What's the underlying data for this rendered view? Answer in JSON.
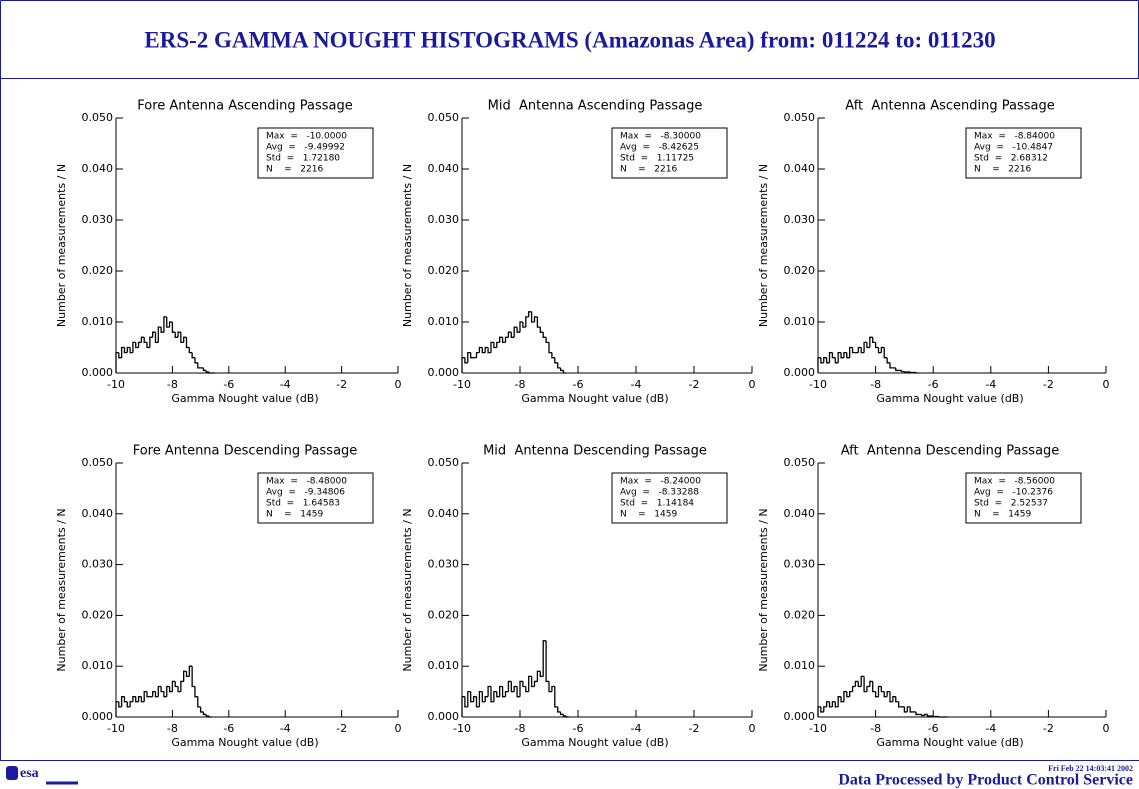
{
  "header": {
    "title": "ERS-2 GAMMA NOUGHT HISTOGRAMS (Amazonas Area) from: 011224 to: 011230"
  },
  "footer": {
    "logo": "esa",
    "timestamp": "Fri Feb 22 14:03:41 2002",
    "credit": "Data Processed by Product Control Service"
  },
  "chart_data": [
    {
      "type": "histogram",
      "title": "Fore Antenna Ascending Passage",
      "x_label": "Gamma Nought value (dB)",
      "y_label": "Number of measurements / N",
      "color": "#000000",
      "stats": [
        "Max  =   -10.0000",
        "Avg  =   -9.49992",
        "Std  =   1.72180",
        "N    =   2216"
      ],
      "bins": [
        -10,
        -9.9,
        -9.8,
        -9.7,
        -9.6,
        -9.5,
        -9.4,
        -9.3,
        -9.2,
        -9.1,
        -9,
        -8.9,
        -8.8,
        -8.7,
        -8.6,
        -8.5,
        -8.4,
        -8.3,
        -8.2,
        -8.1,
        -8,
        -7.9,
        -7.8,
        -7.7,
        -7.6,
        -7.5,
        -7.4,
        -7.3,
        -7.2,
        -7.1,
        -7,
        -6.9,
        -6.8,
        -6.7,
        -6.6,
        -6.5
      ],
      "values": [
        0.004,
        0.003,
        0.005,
        0.004,
        0.005,
        0.004,
        0.006,
        0.005,
        0.006,
        0.007,
        0.006,
        0.005,
        0.007,
        0.008,
        0.006,
        0.009,
        0.008,
        0.011,
        0.009,
        0.01,
        0.008,
        0.007,
        0.008,
        0.006,
        0.007,
        0.005,
        0.004,
        0.003,
        0.002,
        0.001,
        0.001,
        0.0005,
        0.0002,
        0,
        0
      ],
      "xlim": [
        -10,
        0
      ],
      "xticks": [
        -10,
        -8,
        -6,
        -4,
        -2,
        0
      ],
      "ylim": [
        0,
        0.05
      ],
      "yticks": [
        {
          "value": 0,
          "label": "0.000"
        },
        {
          "value": 0.01,
          "label": "0.010"
        },
        {
          "value": 0.02,
          "label": "0.020"
        },
        {
          "value": 0.03,
          "label": "0.030"
        },
        {
          "value": 0.04,
          "label": "0.040"
        },
        {
          "value": 0.05,
          "label": "0.050"
        }
      ]
    },
    {
      "type": "histogram",
      "title": "Mid  Antenna Ascending Passage",
      "x_label": "Gamma Nought value (dB)",
      "y_label": "Number of measurements / N",
      "color": "#000000",
      "stats": [
        "Max  =   -8.30000",
        "Avg  =   -8.42625",
        "Std  =   1.11725",
        "N    =   2216"
      ],
      "bins": [
        -10,
        -9.9,
        -9.8,
        -9.7,
        -9.6,
        -9.5,
        -9.4,
        -9.3,
        -9.2,
        -9.1,
        -9,
        -8.9,
        -8.8,
        -8.7,
        -8.6,
        -8.5,
        -8.4,
        -8.3,
        -8.2,
        -8.1,
        -8,
        -7.9,
        -7.8,
        -7.7,
        -7.6,
        -7.5,
        -7.4,
        -7.3,
        -7.2,
        -7.1,
        -7,
        -6.9,
        -6.8,
        -6.7,
        -6.6,
        -6.5,
        -6.4
      ],
      "values": [
        0.003,
        0.002,
        0.004,
        0.003,
        0.003,
        0.004,
        0.005,
        0.004,
        0.005,
        0.004,
        0.006,
        0.005,
        0.006,
        0.007,
        0.006,
        0.007,
        0.008,
        0.007,
        0.009,
        0.008,
        0.01,
        0.009,
        0.011,
        0.012,
        0.01,
        0.011,
        0.009,
        0.008,
        0.007,
        0.006,
        0.004,
        0.003,
        0.002,
        0.001,
        0.0005,
        0
      ],
      "xlim": [
        -10,
        0
      ],
      "xticks": [
        -10,
        -8,
        -6,
        -4,
        -2,
        0
      ],
      "ylim": [
        0,
        0.05
      ],
      "yticks": [
        {
          "value": 0,
          "label": "0.000"
        },
        {
          "value": 0.01,
          "label": "0.010"
        },
        {
          "value": 0.02,
          "label": "0.020"
        },
        {
          "value": 0.03,
          "label": "0.030"
        },
        {
          "value": 0.04,
          "label": "0.040"
        },
        {
          "value": 0.05,
          "label": "0.050"
        }
      ]
    },
    {
      "type": "histogram",
      "title": "Aft  Antenna Ascending Passage",
      "x_label": "Gamma Nought value (dB)",
      "y_label": "Number of measurements / N",
      "color": "#000000",
      "stats": [
        "Max  =   -8.84000",
        "Avg  =   -10.4847",
        "Std  =   2.68312",
        "N    =   2216"
      ],
      "bins": [
        -10,
        -9.9,
        -9.8,
        -9.7,
        -9.6,
        -9.5,
        -9.4,
        -9.3,
        -9.2,
        -9.1,
        -9,
        -8.9,
        -8.8,
        -8.7,
        -8.6,
        -8.5,
        -8.4,
        -8.3,
        -8.2,
        -8.1,
        -8,
        -7.9,
        -7.8,
        -7.7,
        -7.6,
        -7.5,
        -7.4,
        -7.3,
        -7.2,
        -7.1,
        -7,
        -6.9,
        -6.8,
        -6.7,
        -6.6,
        -6.5
      ],
      "values": [
        0.003,
        0.002,
        0.003,
        0.002,
        0.004,
        0.003,
        0.002,
        0.004,
        0.003,
        0.004,
        0.003,
        0.005,
        0.004,
        0.004,
        0.005,
        0.004,
        0.006,
        0.005,
        0.007,
        0.006,
        0.005,
        0.004,
        0.005,
        0.003,
        0.002,
        0.001,
        0.001,
        0.0005,
        0.0005,
        0.0003,
        0.0002,
        0.0002,
        0.0001,
        0.0001,
        0
      ],
      "xlim": [
        -10,
        0
      ],
      "xticks": [
        -10,
        -8,
        -6,
        -4,
        -2,
        0
      ],
      "ylim": [
        0,
        0.05
      ],
      "yticks": [
        {
          "value": 0,
          "label": "0.000"
        },
        {
          "value": 0.01,
          "label": "0.010"
        },
        {
          "value": 0.02,
          "label": "0.020"
        },
        {
          "value": 0.03,
          "label": "0.030"
        },
        {
          "value": 0.04,
          "label": "0.040"
        },
        {
          "value": 0.05,
          "label": "0.050"
        }
      ]
    },
    {
      "type": "histogram",
      "title": "Fore Antenna Descending Passage",
      "x_label": "Gamma Nought value (dB)",
      "y_label": "Number of measurements / N",
      "color": "#000000",
      "stats": [
        "Max  =   -8.48000",
        "Avg  =   -9.34806",
        "Std  =   1.64583",
        "N    =   1459"
      ],
      "bins": [
        -10,
        -9.9,
        -9.8,
        -9.7,
        -9.6,
        -9.5,
        -9.4,
        -9.3,
        -9.2,
        -9.1,
        -9,
        -8.9,
        -8.8,
        -8.7,
        -8.6,
        -8.5,
        -8.4,
        -8.3,
        -8.2,
        -8.1,
        -8,
        -7.9,
        -7.8,
        -7.7,
        -7.6,
        -7.5,
        -7.4,
        -7.3,
        -7.2,
        -7.1,
        -7,
        -6.9,
        -6.8,
        -6.7,
        -6.6
      ],
      "values": [
        0.003,
        0.002,
        0.004,
        0.003,
        0.002,
        0.003,
        0.004,
        0.003,
        0.004,
        0.003,
        0.005,
        0.004,
        0.004,
        0.005,
        0.004,
        0.006,
        0.005,
        0.004,
        0.006,
        0.005,
        0.007,
        0.006,
        0.005,
        0.007,
        0.009,
        0.008,
        0.01,
        0.006,
        0.004,
        0.002,
        0.001,
        0.0005,
        0.0002,
        0
      ],
      "xlim": [
        -10,
        0
      ],
      "xticks": [
        -10,
        -8,
        -6,
        -4,
        -2,
        0
      ],
      "ylim": [
        0,
        0.05
      ],
      "yticks": [
        {
          "value": 0,
          "label": "0.000"
        },
        {
          "value": 0.01,
          "label": "0.010"
        },
        {
          "value": 0.02,
          "label": "0.020"
        },
        {
          "value": 0.03,
          "label": "0.030"
        },
        {
          "value": 0.04,
          "label": "0.040"
        },
        {
          "value": 0.05,
          "label": "0.050"
        }
      ]
    },
    {
      "type": "histogram",
      "title": "Mid  Antenna Descending Passage",
      "x_label": "Gamma Nought value (dB)",
      "y_label": "Number of measurements / N",
      "color": "#000000",
      "stats": [
        "Max  =   -8.24000",
        "Avg  =   -8.33288",
        "Std  =   1.14184",
        "N    =   1459"
      ],
      "bins": [
        -10,
        -9.9,
        -9.8,
        -9.7,
        -9.6,
        -9.5,
        -9.4,
        -9.3,
        -9.2,
        -9.1,
        -9,
        -8.9,
        -8.8,
        -8.7,
        -8.6,
        -8.5,
        -8.4,
        -8.3,
        -8.2,
        -8.1,
        -8,
        -7.9,
        -7.8,
        -7.7,
        -7.6,
        -7.5,
        -7.4,
        -7.3,
        -7.2,
        -7.1,
        -7,
        -6.9,
        -6.8,
        -6.7,
        -6.6,
        -6.5,
        -6.4,
        -6.3
      ],
      "values": [
        0.004,
        0.002,
        0.005,
        0.003,
        0.004,
        0.002,
        0.005,
        0.003,
        0.004,
        0.006,
        0.003,
        0.005,
        0.004,
        0.006,
        0.004,
        0.005,
        0.007,
        0.005,
        0.006,
        0.004,
        0.007,
        0.006,
        0.005,
        0.008,
        0.006,
        0.007,
        0.009,
        0.008,
        0.015,
        0.007,
        0.005,
        0.006,
        0.002,
        0.001,
        0.0005,
        0.0002,
        0
      ],
      "xlim": [
        -10,
        0
      ],
      "xticks": [
        -10,
        -8,
        -6,
        -4,
        -2,
        0
      ],
      "ylim": [
        0,
        0.05
      ],
      "yticks": [
        {
          "value": 0,
          "label": "0.000"
        },
        {
          "value": 0.01,
          "label": "0.010"
        },
        {
          "value": 0.02,
          "label": "0.020"
        },
        {
          "value": 0.03,
          "label": "0.030"
        },
        {
          "value": 0.04,
          "label": "0.040"
        },
        {
          "value": 0.05,
          "label": "0.050"
        }
      ]
    },
    {
      "type": "histogram",
      "title": "Aft  Antenna Descending Passage",
      "x_label": "Gamma Nought value (dB)",
      "y_label": "Number of measurements / N",
      "color": "#000000",
      "stats": [
        "Max  =   -8.56000",
        "Avg  =   -10.2376",
        "Std  =   2.52537",
        "N    =   1459"
      ],
      "bins": [
        -10,
        -9.9,
        -9.8,
        -9.7,
        -9.6,
        -9.5,
        -9.4,
        -9.3,
        -9.2,
        -9.1,
        -9,
        -8.9,
        -8.8,
        -8.7,
        -8.6,
        -8.5,
        -8.4,
        -8.3,
        -8.2,
        -8.1,
        -8,
        -7.9,
        -7.8,
        -7.7,
        -7.6,
        -7.5,
        -7.4,
        -7.3,
        -7.2,
        -7.1,
        -7,
        -6.9,
        -6.8,
        -6.7,
        -6.6,
        -6.5,
        -6.4,
        -6.3,
        -6.2,
        -6.1,
        -6,
        -5.9,
        -5.8,
        -5.7,
        -5.6,
        -5.5
      ],
      "values": [
        0.002,
        0.001,
        0.002,
        0.003,
        0.002,
        0.003,
        0.002,
        0.004,
        0.003,
        0.005,
        0.004,
        0.005,
        0.006,
        0.007,
        0.006,
        0.008,
        0.005,
        0.006,
        0.007,
        0.005,
        0.004,
        0.006,
        0.005,
        0.004,
        0.005,
        0.003,
        0.004,
        0.003,
        0.002,
        0.002,
        0.001,
        0.002,
        0.001,
        0.001,
        0.0005,
        0.0005,
        0.0003,
        0.0005,
        0.0002,
        0.0002,
        0.0001,
        0.0001,
        0,
        0,
        0
      ],
      "xlim": [
        -10,
        0
      ],
      "xticks": [
        -10,
        -8,
        -6,
        -4,
        -2,
        0
      ],
      "ylim": [
        0,
        0.05
      ],
      "yticks": [
        {
          "value": 0,
          "label": "0.000"
        },
        {
          "value": 0.01,
          "label": "0.010"
        },
        {
          "value": 0.02,
          "label": "0.020"
        },
        {
          "value": 0.03,
          "label": "0.030"
        },
        {
          "value": 0.04,
          "label": "0.040"
        },
        {
          "value": 0.05,
          "label": "0.050"
        }
      ]
    }
  ]
}
